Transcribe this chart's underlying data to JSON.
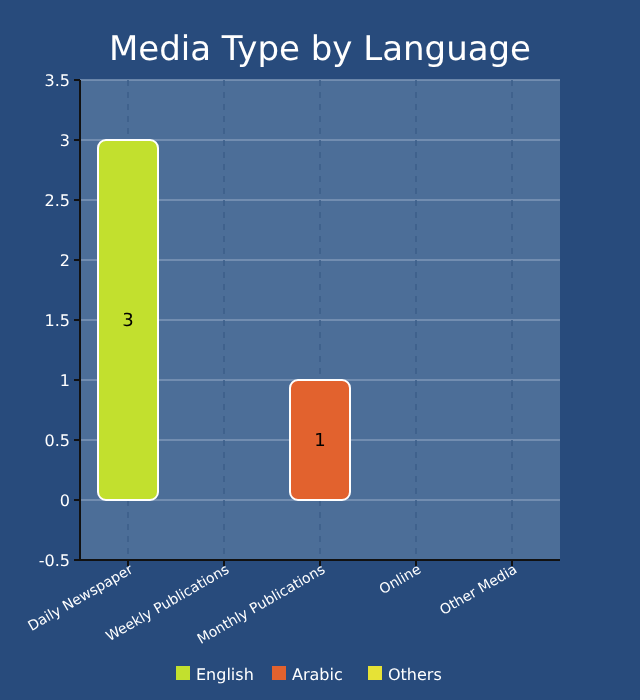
{
  "chart_data": {
    "type": "bar",
    "title": "Media Type by Language",
    "categories": [
      "Daily Newspaper",
      "Weekly Publications",
      "Monthly Publications",
      "Online",
      "Other Media"
    ],
    "series": [
      {
        "name": "English",
        "color": "#c2e02e",
        "values": [
          3,
          null,
          null,
          null,
          null
        ]
      },
      {
        "name": "Arabic",
        "color": "#e2622e",
        "values": [
          null,
          null,
          1,
          null,
          null
        ]
      },
      {
        "name": "Others",
        "color": "#e6e236",
        "values": [
          null,
          null,
          null,
          null,
          null
        ]
      }
    ],
    "ylim": [
      -0.5,
      3.5
    ],
    "yticks": [
      -0.5,
      0,
      0.5,
      1,
      1.5,
      2,
      2.5,
      3,
      3.5
    ],
    "grid": true,
    "legend": "bottom",
    "data_labels": true
  }
}
